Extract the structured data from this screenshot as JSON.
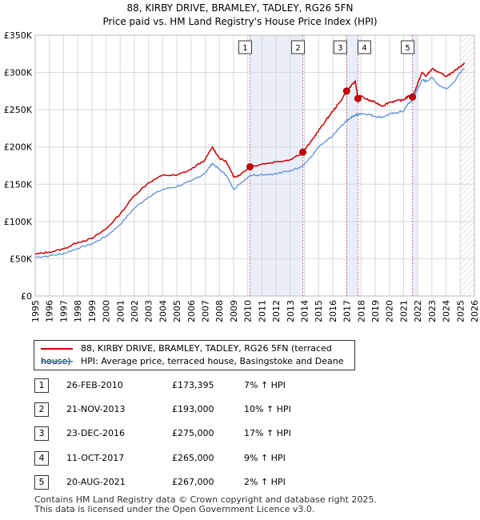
{
  "colors": {
    "property": "#cc0000",
    "hpi": "#5b8fd6",
    "shade": "#e9eef9",
    "grid": "#d8d8d8",
    "vline": "#d96b8a"
  },
  "chart_data": {
    "type": "line",
    "title": "88, KIRBY DRIVE, BRAMLEY, TADLEY, RG26 5FN",
    "subtitle": "Price paid vs. HM Land Registry's House Price Index (HPI)",
    "xlabel": "",
    "ylabel": "",
    "xlim": [
      1995,
      2026
    ],
    "ylim": [
      0,
      350000
    ],
    "y_ticks": [
      0,
      50000,
      100000,
      150000,
      200000,
      250000,
      300000,
      350000
    ],
    "y_tick_labels": [
      "£0",
      "£50K",
      "£100K",
      "£150K",
      "£200K",
      "£250K",
      "£300K",
      "£350K"
    ],
    "x_ticks": [
      1995,
      1996,
      1997,
      1998,
      1999,
      2000,
      2001,
      2002,
      2003,
      2004,
      2005,
      2006,
      2007,
      2008,
      2009,
      2010,
      2011,
      2012,
      2013,
      2014,
      2015,
      2016,
      2017,
      2018,
      2019,
      2020,
      2021,
      2022,
      2023,
      2024,
      2025,
      2026
    ],
    "x_tick_labels": [
      "1995",
      "1996",
      "1997",
      "1998",
      "1999",
      "2000",
      "2001",
      "2002",
      "2003",
      "2004",
      "2005",
      "2006",
      "2007",
      "2008",
      "2009",
      "2010",
      "2011",
      "2012",
      "2013",
      "2014",
      "2015",
      "2016",
      "2017",
      "2018",
      "2019",
      "2020",
      "2021",
      "2022",
      "2023",
      "2024",
      "2025",
      "2026"
    ],
    "series": [
      {
        "name": "88, KIRBY DRIVE, BRAMLEY, TADLEY, RG26 5FN (terraced house)",
        "color": "#cc0000",
        "x": [
          1995.0,
          1996.0,
          1997.0,
          1998.0,
          1999.0,
          2000.0,
          2001.0,
          2002.0,
          2003.0,
          2004.0,
          2005.0,
          2006.0,
          2007.0,
          2007.5,
          2008.0,
          2008.5,
          2009.0,
          2009.4,
          2010.16,
          2011.0,
          2012.0,
          2013.0,
          2013.89,
          2014.5,
          2015.0,
          2015.5,
          2016.0,
          2016.5,
          2016.98,
          2017.3,
          2017.6,
          2017.78,
          2018.0,
          2018.5,
          2019.0,
          2019.5,
          2020.0,
          2020.5,
          2021.0,
          2021.3,
          2021.63,
          2022.0,
          2022.3,
          2022.6,
          2023.0,
          2023.5,
          2024.0,
          2024.5,
          2025.0,
          2025.3
        ],
        "y": [
          56000,
          59000,
          63000,
          72000,
          77000,
          90000,
          110000,
          135000,
          152000,
          162000,
          162000,
          170000,
          183000,
          200000,
          185000,
          180000,
          160000,
          162000,
          173395,
          177000,
          180000,
          183000,
          193000,
          208000,
          222000,
          235000,
          248000,
          260000,
          275000,
          282000,
          288000,
          265000,
          268000,
          263000,
          260000,
          255000,
          260000,
          262000,
          263000,
          268000,
          267000,
          285000,
          300000,
          295000,
          305000,
          300000,
          295000,
          300000,
          308000,
          313000
        ]
      },
      {
        "name": "HPI: Average price, terraced house, Basingstoke and Deane",
        "color": "#5b8fd6",
        "x": [
          1995.0,
          1996.0,
          1997.0,
          1998.0,
          1999.0,
          2000.0,
          2001.0,
          2002.0,
          2003.0,
          2004.0,
          2005.0,
          2006.0,
          2007.0,
          2007.5,
          2008.0,
          2008.5,
          2009.0,
          2009.4,
          2010.16,
          2011.0,
          2012.0,
          2013.0,
          2013.89,
          2014.5,
          2015.0,
          2015.5,
          2016.0,
          2016.5,
          2016.98,
          2017.3,
          2017.6,
          2017.78,
          2018.0,
          2018.5,
          2019.0,
          2019.5,
          2020.0,
          2020.5,
          2021.0,
          2021.3,
          2021.63,
          2022.0,
          2022.3,
          2022.6,
          2023.0,
          2023.5,
          2024.0,
          2024.5,
          2025.0,
          2025.3
        ],
        "y": [
          52000,
          54000,
          57000,
          64000,
          70000,
          80000,
          96000,
          118000,
          133000,
          143000,
          147000,
          154000,
          165000,
          178000,
          170000,
          162000,
          143000,
          150000,
          162000,
          163000,
          164000,
          168000,
          175000,
          187000,
          200000,
          207000,
          215000,
          226000,
          235000,
          240000,
          243000,
          243000,
          245000,
          244000,
          241000,
          240000,
          244000,
          246000,
          248000,
          258000,
          262000,
          278000,
          290000,
          288000,
          293000,
          283000,
          278000,
          286000,
          300000,
          305000
        ]
      }
    ],
    "sales": [
      {
        "id": "1",
        "x": 2010.16,
        "y": 173395
      },
      {
        "id": "2",
        "x": 2013.89,
        "y": 193000
      },
      {
        "id": "3",
        "x": 2016.98,
        "y": 275000
      },
      {
        "id": "4",
        "x": 2017.78,
        "y": 265000
      },
      {
        "id": "5",
        "x": 2021.63,
        "y": 267000
      }
    ],
    "shaded_spans": [
      [
        2010.16,
        2013.89
      ],
      [
        2016.98,
        2017.78
      ],
      [
        2021.63,
        2022.0
      ]
    ],
    "hatch_from": 2025.0
  },
  "legend": {
    "property_label": "88, KIRBY DRIVE, BRAMLEY, TADLEY, RG26 5FN (terraced house)",
    "hpi_label": "HPI: Average price, terraced house, Basingstoke and Deane"
  },
  "transactions": [
    {
      "id": "1",
      "date": "26-FEB-2010",
      "price": "£173,395",
      "hpi": "7% ↑ HPI"
    },
    {
      "id": "2",
      "date": "21-NOV-2013",
      "price": "£193,000",
      "hpi": "10% ↑ HPI"
    },
    {
      "id": "3",
      "date": "23-DEC-2016",
      "price": "£275,000",
      "hpi": "17% ↑ HPI"
    },
    {
      "id": "4",
      "date": "11-OCT-2017",
      "price": "£265,000",
      "hpi": "9% ↑ HPI"
    },
    {
      "id": "5",
      "date": "20-AUG-2021",
      "price": "£267,000",
      "hpi": "2% ↑ HPI"
    }
  ],
  "footer": {
    "line1": "Contains HM Land Registry data © Crown copyright and database right 2025.",
    "line2": "This data is licensed under the Open Government Licence v3.0."
  }
}
